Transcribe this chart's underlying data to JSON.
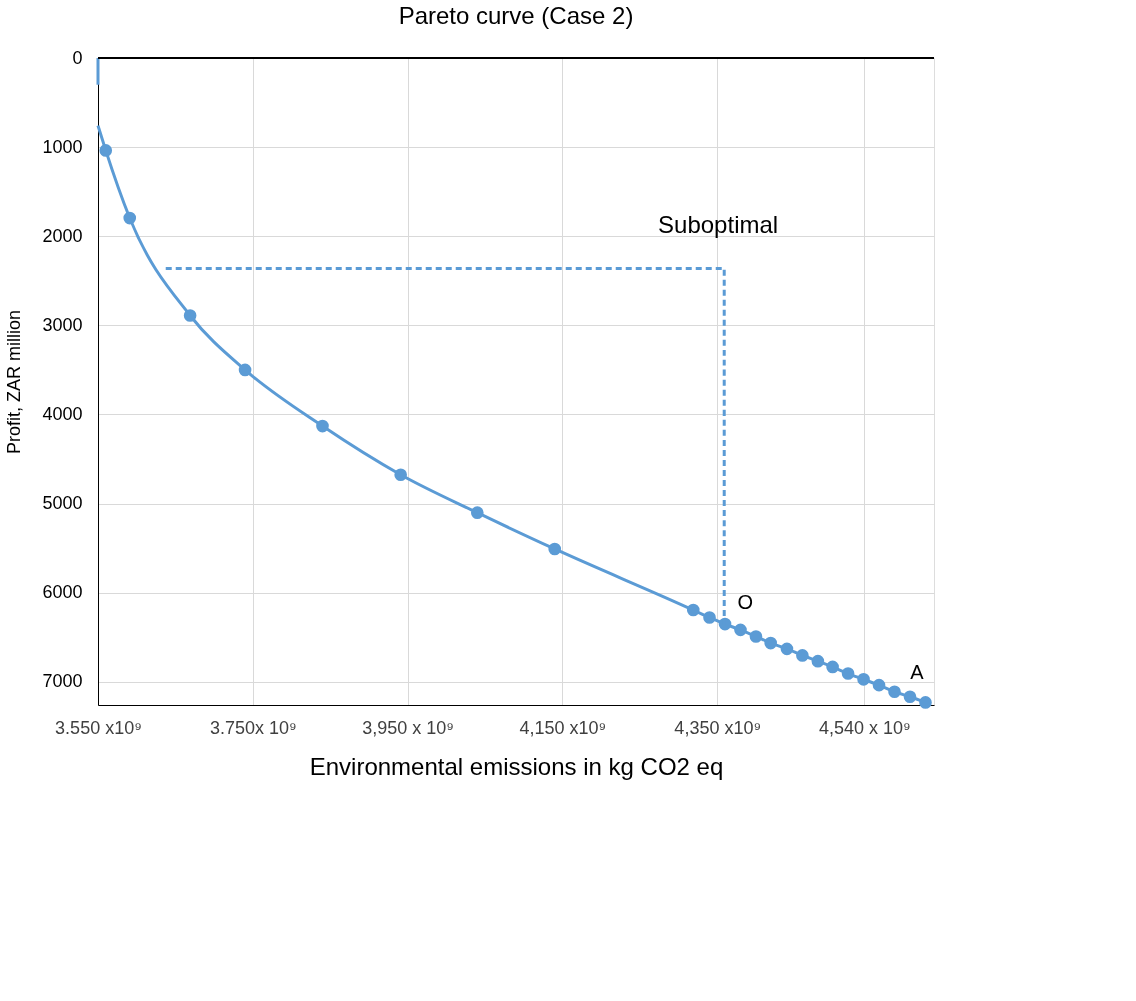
{
  "chart_data": {
    "type": "scatter",
    "title": "Pareto curve (Case 2)",
    "xlabel": "Environmental  emissions in  kg CO2 eq",
    "ylabel": "Profit, ZAR million",
    "xlim": [
      3550000000,
      4630000000
    ],
    "ylim": [
      7260,
      0
    ],
    "xticks": [
      {
        "value": 3550000000,
        "label": "3.550 x10⁹"
      },
      {
        "value": 3750000000,
        "label": "3.750x 10⁹"
      },
      {
        "value": 3950000000,
        "label": "3,950 x 10⁹"
      },
      {
        "value": 4150000000,
        "label": "4,150 x10⁹"
      },
      {
        "value": 4350000000,
        "label": "4,350 x10⁹"
      },
      {
        "value": 4540000000,
        "label": "4,540 x 10⁹"
      }
    ],
    "yticks": [
      0,
      1000,
      2000,
      3000,
      4000,
      5000,
      6000,
      7000
    ],
    "grid": true,
    "series": [
      {
        "type": "line",
        "color": "#5b9bd5",
        "marker": "none",
        "x": [
          3550000000,
          3560000000,
          3591000000,
          3669000000,
          3740000000,
          3840000000,
          3941000000,
          4040000000,
          4140000000,
          4319000000,
          4340000000,
          4360000000,
          4380000000,
          4400000000,
          4419000000,
          4440000000,
          4460000000,
          4480000000,
          4499000000,
          4519000000,
          4539000000,
          4559000000,
          4579000000,
          4599000000,
          4619000000
        ],
        "values": [
          759,
          1037,
          1796,
          2889,
          3500,
          4130,
          4676,
          5102,
          5509,
          6194,
          6278,
          6352,
          6417,
          6491,
          6565,
          6630,
          6704,
          6768,
          6833,
          6907,
          6972,
          7037,
          7111,
          7167,
          7231
        ]
      },
      {
        "color": "#5b9bd5",
        "marker": "circle",
        "x": [
          3560000000,
          3591000000,
          3669000000,
          3740000000,
          3840000000,
          3941000000,
          4040000000,
          4140000000,
          4319000000,
          4340000000,
          4360000000,
          4380000000,
          4400000000,
          4419000000,
          4440000000,
          4460000000,
          4480000000,
          4499000000,
          4519000000,
          4539000000,
          4559000000,
          4579000000,
          4599000000,
          4619000000
        ],
        "values": [
          1037,
          1796,
          2889,
          3500,
          4130,
          4676,
          5102,
          5509,
          6194,
          6278,
          6352,
          6417,
          6491,
          6565,
          6630,
          6704,
          6768,
          6833,
          6907,
          6972,
          7037,
          7111,
          7167,
          7231
        ]
      },
      {
        "type": "line",
        "color": "#5b9bd5",
        "marker": "none",
        "x": [
          3550000000,
          3550000000
        ],
        "values": [
          0,
          300
        ]
      },
      {
        "type": "line",
        "color": "#5b9bd5",
        "marker": "none",
        "line_style": "dashed",
        "x": [
          3637500000,
          4359000000,
          4359000000
        ],
        "values": [
          2361,
          2361,
          6361
        ]
      }
    ],
    "ref_lines": [
      {
        "axis": "y",
        "value": 0,
        "color": "#000000"
      }
    ],
    "annotations": [
      "Suboptimal",
      "O",
      "A"
    ]
  }
}
